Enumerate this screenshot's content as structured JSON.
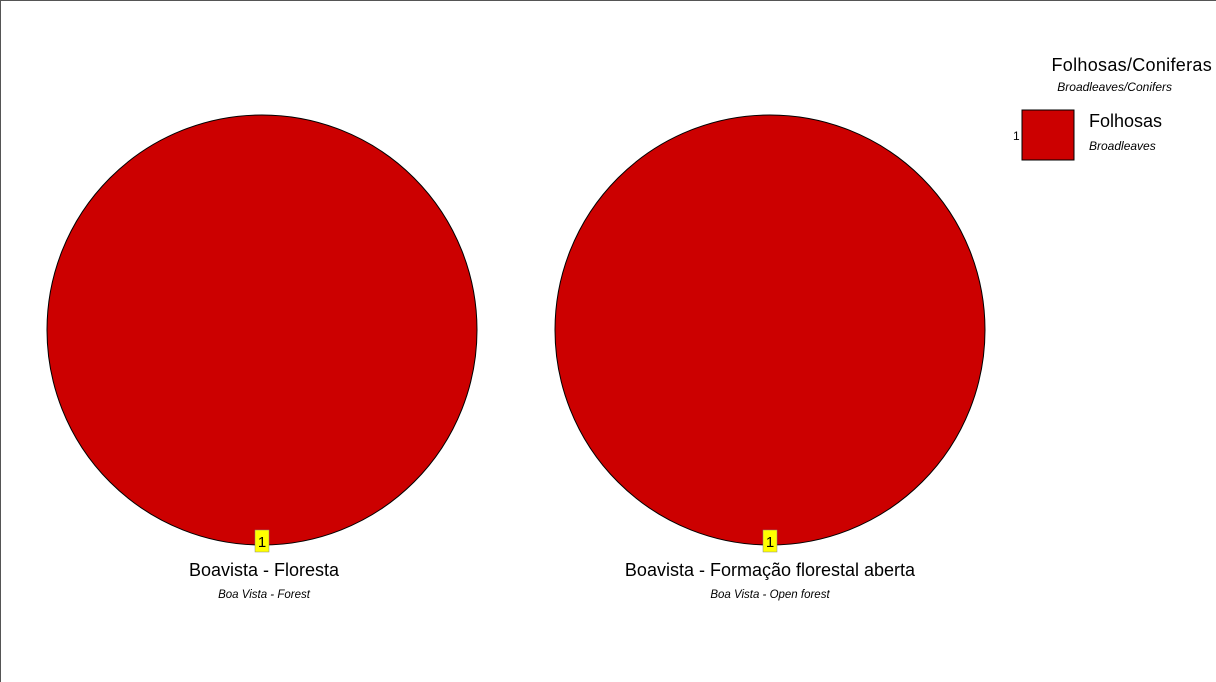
{
  "chart_data": [
    {
      "type": "pie",
      "title": "Boavista - Floresta",
      "subtitle": "Boa Vista - Forest",
      "categories": [
        "Folhosas"
      ],
      "values": [
        1
      ],
      "labels": [
        "1"
      ],
      "colors": [
        "#cc0000"
      ]
    },
    {
      "type": "pie",
      "title": "Boavista - Formação florestal aberta",
      "subtitle": "Boa Vista - Open forest",
      "categories": [
        "Folhosas"
      ],
      "values": [
        1
      ],
      "labels": [
        "1"
      ],
      "colors": [
        "#cc0000"
      ]
    }
  ],
  "legend": {
    "title": "Folhosas/Coniferas",
    "subtitle": "Broadleaves/Conifers",
    "placement": "top-right",
    "items": [
      {
        "index": "1",
        "label": "Folhosas",
        "sublabel": "Broadleaves",
        "color": "#cc0000"
      }
    ]
  },
  "colors": {
    "slice": "#cc0000",
    "badge": "#ffff00",
    "outline": "#000000"
  }
}
